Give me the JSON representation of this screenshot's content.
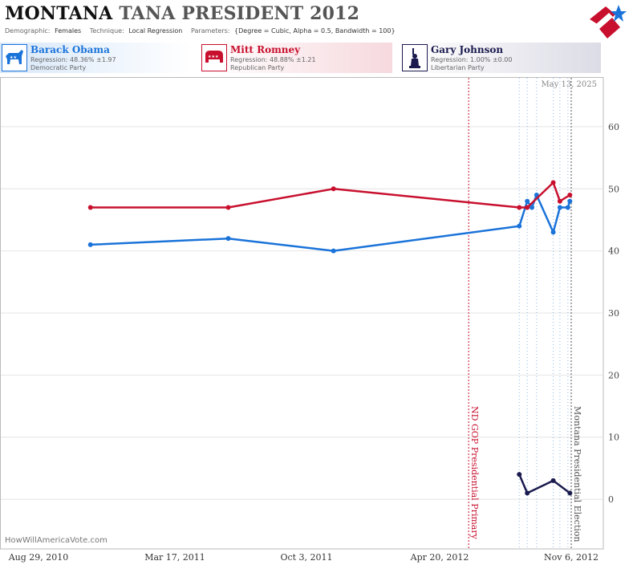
{
  "header": {
    "title_part1": "MONTANA",
    "title_part2": "TANA PRESIDENT 2012",
    "demographic_label": "Demographic:",
    "demographic_value": "Females",
    "technique_label": "Technique:",
    "technique_value": "Local Regression",
    "parameters_label": "Parameters:",
    "parameters_value": "{Degree = Cubic, Alpha = 0.5, Bandwidth = 100}"
  },
  "candidates": [
    {
      "name": "Barack Obama",
      "regression": "Regression: 48.36% ±1.97",
      "party": "Democratic Party",
      "color": "#1a73d9"
    },
    {
      "name": "Mitt Romney",
      "regression": "Regression: 48.88% ±1.21",
      "party": "Republican Party",
      "color": "#c8102e"
    },
    {
      "name": "Gary Johnson",
      "regression": "Regression: 1.00% ±0.00",
      "party": "Libertarian Party",
      "color": "#1a1a4e"
    }
  ],
  "date_stamp": "May 13, 2025",
  "watermark": "HowWillAmericaVote.com",
  "chart_data": {
    "type": "line",
    "x_tick_labels": [
      "Aug 29, 2010",
      "Mar 17, 2011",
      "Oct 3, 2011",
      "Apr 20, 2012",
      "Nov 6, 2012"
    ],
    "y_ticks": [
      0,
      10,
      20,
      30,
      40,
      50,
      60
    ],
    "ylim": [
      -8,
      68
    ],
    "annotations": [
      {
        "label": "ND GOP Presidential Primary",
        "color": "#c8102e"
      },
      {
        "label": "Montana Presidential Election",
        "color": "#555555"
      }
    ],
    "series": [
      {
        "name": "Barack Obama",
        "color": "#1a73d9",
        "points": [
          [
            "2010-11-15",
            41
          ],
          [
            "2011-06-10",
            42
          ],
          [
            "2011-11-15",
            40
          ],
          [
            "2012-08-20",
            44
          ],
          [
            "2012-09-01",
            48
          ],
          [
            "2012-09-08",
            47
          ],
          [
            "2012-09-15",
            49
          ],
          [
            "2012-10-10",
            43
          ],
          [
            "2012-10-20",
            47
          ],
          [
            "2012-11-01",
            47
          ],
          [
            "2012-11-04",
            48
          ]
        ]
      },
      {
        "name": "Mitt Romney",
        "color": "#c8102e",
        "points": [
          [
            "2010-11-15",
            47
          ],
          [
            "2011-06-10",
            47
          ],
          [
            "2011-11-15",
            50
          ],
          [
            "2012-08-20",
            47
          ],
          [
            "2012-09-01",
            47
          ],
          [
            "2012-10-10",
            51
          ],
          [
            "2012-10-20",
            48
          ],
          [
            "2012-11-04",
            49
          ]
        ]
      },
      {
        "name": "Gary Johnson",
        "color": "#1a1a4e",
        "points": [
          [
            "2012-08-20",
            4
          ],
          [
            "2012-09-01",
            1
          ],
          [
            "2012-10-10",
            3
          ],
          [
            "2012-11-04",
            1
          ]
        ]
      }
    ]
  }
}
